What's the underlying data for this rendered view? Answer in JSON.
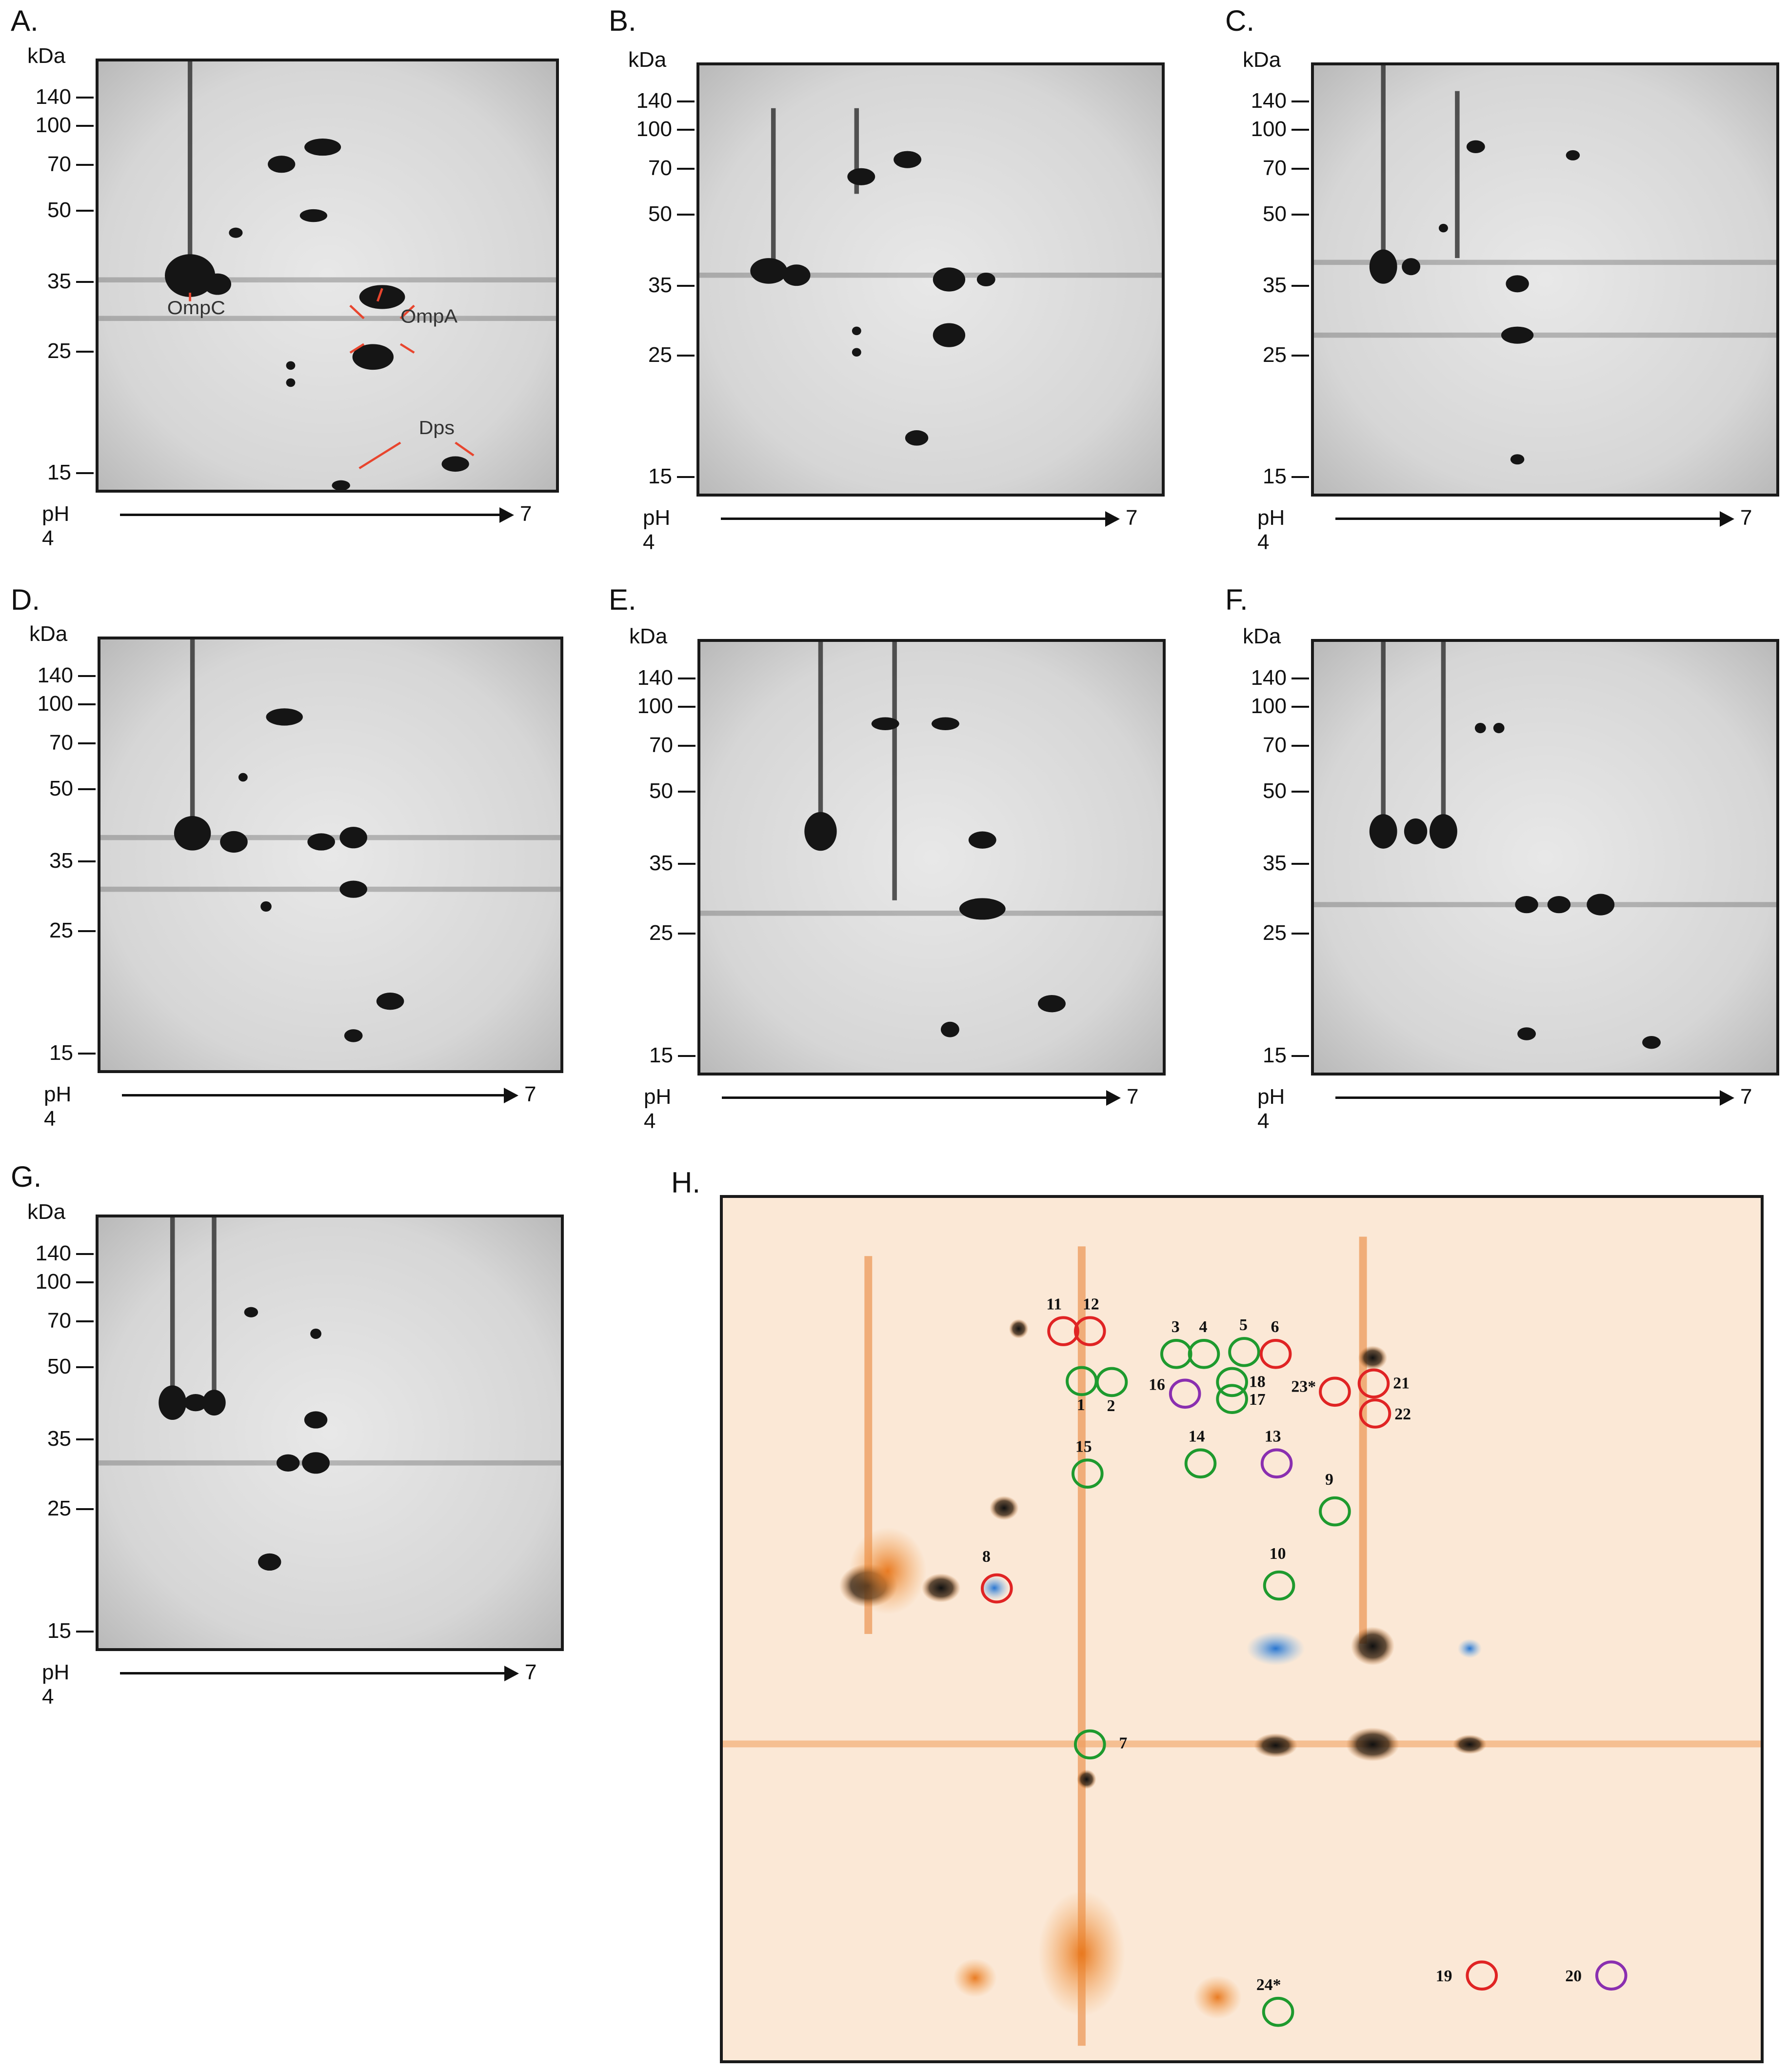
{
  "axis": {
    "unit": "kDa",
    "ticks": [
      "140",
      "100",
      "70",
      "50",
      "35",
      "25",
      "15"
    ],
    "ph_label": "pH",
    "ph_start": "4",
    "ph_end": "7"
  },
  "panels": [
    {
      "label": "A.",
      "annotations": [
        "OmpC",
        "OmpA",
        "Dps"
      ]
    },
    {
      "label": "B."
    },
    {
      "label": "C."
    },
    {
      "label": "D."
    },
    {
      "label": "E."
    },
    {
      "label": "F."
    },
    {
      "label": "G."
    }
  ],
  "panel_h": {
    "label": "H.",
    "spots": [
      {
        "num": "1",
        "ring": "green"
      },
      {
        "num": "2",
        "ring": "green"
      },
      {
        "num": "3",
        "ring": "green"
      },
      {
        "num": "4",
        "ring": "green"
      },
      {
        "num": "5",
        "ring": "green"
      },
      {
        "num": "6",
        "ring": "red"
      },
      {
        "num": "7",
        "ring": "green"
      },
      {
        "num": "8",
        "ring": "red"
      },
      {
        "num": "9",
        "ring": "green"
      },
      {
        "num": "10",
        "ring": "green"
      },
      {
        "num": "11",
        "ring": "red"
      },
      {
        "num": "12",
        "ring": "red"
      },
      {
        "num": "13",
        "ring": "purple"
      },
      {
        "num": "14",
        "ring": "green"
      },
      {
        "num": "15",
        "ring": "green"
      },
      {
        "num": "16",
        "ring": "purple"
      },
      {
        "num": "17",
        "ring": "green"
      },
      {
        "num": "18",
        "ring": "green"
      },
      {
        "num": "19",
        "ring": "red"
      },
      {
        "num": "20",
        "ring": "purple"
      },
      {
        "num": "21",
        "ring": "red"
      },
      {
        "num": "22",
        "ring": "red"
      },
      {
        "num": "23*",
        "ring": "red"
      },
      {
        "num": "24*",
        "ring": "green"
      }
    ],
    "ring_colors": {
      "green": "#1e9a2e",
      "red": "#e02424",
      "purple": "#8a2fb0"
    }
  }
}
